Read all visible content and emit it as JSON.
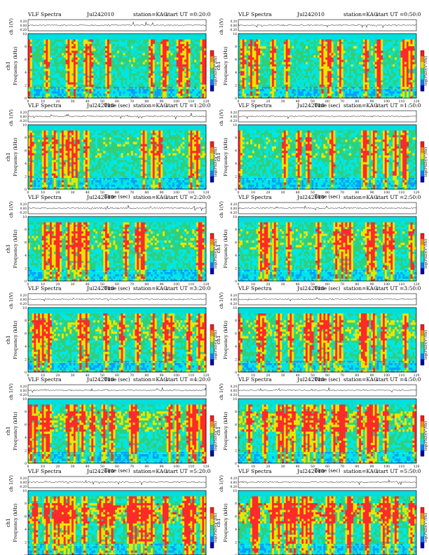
{
  "shared": {
    "title_left": "VLF Spectra",
    "date_odd": "Jul242010",
    "date_even": "Jul242010",
    "station": "station=KAG",
    "xlabel": "Time (sec)",
    "ylabel_top": "ch 1(V)",
    "ylabel_mid": "ch1",
    "ylabel_freq": "Frequency (kHz)",
    "colorbar_label": "log(PSD)(V²/Hz)"
  },
  "chart_data": [
    {
      "type": "heatmap",
      "start_ut": "start UT =0:20:0",
      "xlim": [
        0,
        120
      ],
      "ylim": [
        0,
        10
      ],
      "xticks": [
        0,
        10,
        20,
        30,
        40,
        50,
        60,
        70,
        80,
        90,
        100,
        110,
        120
      ],
      "yticks": [
        0,
        2,
        4,
        6,
        8,
        10
      ],
      "trace_yticks": [
        "0.20",
        "0.00",
        "-0.20"
      ],
      "intensity": 0.3
    },
    {
      "type": "heatmap",
      "start_ut": "start UT =0:50:0",
      "xlim": [
        0,
        120
      ],
      "ylim": [
        0,
        10
      ],
      "xticks": [
        0,
        10,
        20,
        30,
        40,
        50,
        60,
        70,
        80,
        90,
        100,
        110,
        120
      ],
      "yticks": [
        0,
        2,
        4,
        6,
        8,
        10
      ],
      "trace_yticks": [
        "0.20",
        "0.00",
        "-0.20"
      ],
      "intensity": 0.3
    },
    {
      "type": "heatmap",
      "start_ut": "start UT =1:20:0",
      "xlim": [
        0,
        120
      ],
      "ylim": [
        0,
        10
      ],
      "xticks": [
        0,
        10,
        20,
        30,
        40,
        50,
        60,
        70,
        80,
        90,
        100,
        110,
        120
      ],
      "yticks": [
        0,
        2,
        4,
        6,
        8,
        10
      ],
      "trace_yticks": [
        "0.20",
        "0.00",
        "-0.20"
      ],
      "intensity": 0.35
    },
    {
      "type": "heatmap",
      "start_ut": "start UT =1:50:0",
      "xlim": [
        0,
        120
      ],
      "ylim": [
        0,
        10
      ],
      "xticks": [
        0,
        10,
        20,
        30,
        40,
        50,
        60,
        70,
        80,
        90,
        100,
        110,
        120
      ],
      "yticks": [
        0,
        2,
        4,
        6,
        8,
        10
      ],
      "trace_yticks": [
        "0.20",
        "0.00",
        "-0.20"
      ],
      "intensity": 0.35
    },
    {
      "type": "heatmap",
      "start_ut": "start UT =2:20:0",
      "xlim": [
        0,
        120
      ],
      "ylim": [
        0,
        10
      ],
      "xticks": [
        0,
        10,
        20,
        30,
        40,
        50,
        60,
        70,
        80,
        90,
        100,
        110,
        120
      ],
      "yticks": [
        0,
        2,
        4,
        6,
        8,
        10
      ],
      "trace_yticks": [
        "0.20",
        "0.00",
        "-0.20"
      ],
      "intensity": 0.42
    },
    {
      "type": "heatmap",
      "start_ut": "start UT =2:50:0",
      "xlim": [
        0,
        120
      ],
      "ylim": [
        0,
        10
      ],
      "xticks": [
        0,
        10,
        20,
        30,
        40,
        50,
        60,
        70,
        80,
        90,
        100,
        110,
        120
      ],
      "yticks": [
        0,
        2,
        4,
        6,
        8,
        10
      ],
      "trace_yticks": [
        "0.20",
        "0.00",
        "-0.20"
      ],
      "intensity": 0.42
    },
    {
      "type": "heatmap",
      "start_ut": "start UT =3:20:0",
      "xlim": [
        0,
        120
      ],
      "ylim": [
        0,
        10
      ],
      "xticks": [
        0,
        10,
        20,
        30,
        40,
        50,
        60,
        70,
        80,
        90,
        100,
        110,
        120
      ],
      "yticks": [
        0,
        2,
        4,
        6,
        8,
        10
      ],
      "trace_yticks": [
        "0.20",
        "0.00",
        "-0.20"
      ],
      "intensity": 0.5
    },
    {
      "type": "heatmap",
      "start_ut": "start UT =3:50:0",
      "xlim": [
        0,
        120
      ],
      "ylim": [
        0,
        10
      ],
      "xticks": [
        0,
        10,
        20,
        30,
        40,
        50,
        60,
        70,
        80,
        90,
        100,
        110,
        120
      ],
      "yticks": [
        0,
        2,
        4,
        6,
        8,
        10
      ],
      "trace_yticks": [
        "0.20",
        "0.00",
        "-0.20"
      ],
      "intensity": 0.55
    },
    {
      "type": "heatmap",
      "start_ut": "start UT =4:20:0",
      "xlim": [
        0,
        120
      ],
      "ylim": [
        0,
        10
      ],
      "xticks": [
        0,
        10,
        20,
        30,
        40,
        50,
        60,
        70,
        80,
        90,
        100,
        110,
        120
      ],
      "yticks": [
        0,
        2,
        4,
        6,
        8,
        10
      ],
      "trace_yticks": [
        "0.20",
        "0.00",
        "-0.20"
      ],
      "intensity": 0.68
    },
    {
      "type": "heatmap",
      "start_ut": "start UT =4:50:0",
      "xlim": [
        0,
        120
      ],
      "ylim": [
        0,
        10
      ],
      "xticks": [
        0,
        10,
        20,
        30,
        40,
        50,
        60,
        70,
        80,
        90,
        100,
        110,
        120
      ],
      "yticks": [
        0,
        2,
        4,
        6,
        8,
        10
      ],
      "trace_yticks": [
        "0.20",
        "0.00",
        "-0.20"
      ],
      "intensity": 0.75
    },
    {
      "type": "heatmap",
      "start_ut": "start UT =5:20:0",
      "xlim": [
        0,
        120
      ],
      "ylim": [
        0,
        10
      ],
      "xticks": [
        0,
        10,
        20,
        30,
        40,
        50,
        60,
        70,
        80,
        90,
        100,
        110,
        120
      ],
      "yticks": [
        0,
        2,
        4,
        6,
        8,
        10
      ],
      "trace_yticks": [
        "0.20",
        "0.00",
        "-0.20"
      ],
      "intensity": 0.85
    },
    {
      "type": "heatmap",
      "start_ut": "start UT =5:50:0",
      "xlim": [
        0,
        120
      ],
      "ylim": [
        0,
        10
      ],
      "xticks": [
        0,
        10,
        20,
        30,
        40,
        50,
        60,
        70,
        80,
        90,
        100,
        110,
        120
      ],
      "yticks": [
        0,
        2,
        4,
        6,
        8,
        10
      ],
      "trace_yticks": [
        "0.20",
        "0.00",
        "-0.20"
      ],
      "intensity": 0.88
    }
  ]
}
